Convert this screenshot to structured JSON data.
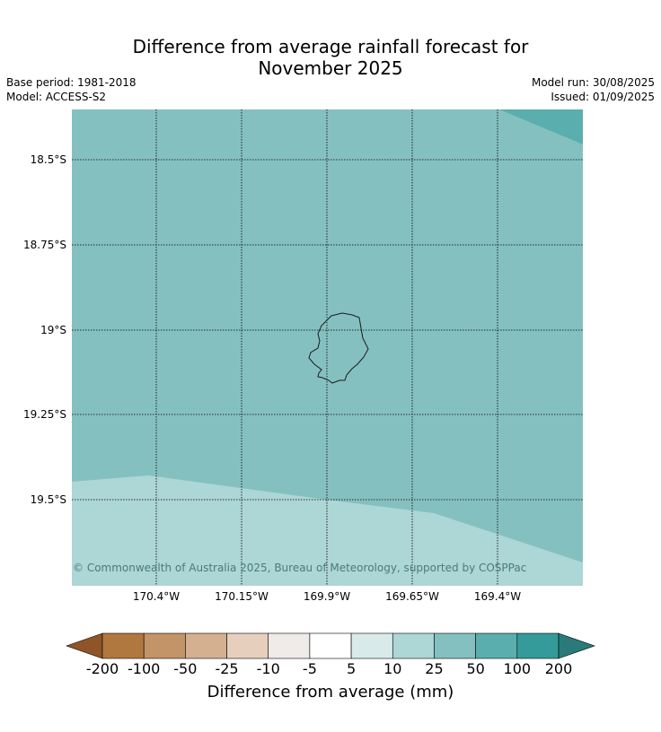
{
  "title": {
    "line1": "Difference from average rainfall forecast for",
    "line2": "November 2025"
  },
  "meta": {
    "base_period": "Base period: 1981-2018",
    "model": "Model: ACCESS-S2",
    "model_run": "Model run: 30/08/2025",
    "issued": "Issued: 01/09/2025"
  },
  "map": {
    "lat_labels": [
      "18.5°S",
      "18.75°S",
      "19°S",
      "19.25°S",
      "19.5°S"
    ],
    "lon_labels": [
      "170.4°W",
      "170.15°W",
      "169.9°W",
      "169.65°W",
      "169.4°W"
    ],
    "colors": {
      "region_25_50": "#85c0c0",
      "region_10_25": "#add6d6",
      "region_50_100": "#5aaeae"
    },
    "copyright": "© Commonwealth of Australia 2025, Bureau of Meteorology, supported by COSPPac"
  },
  "colorbar": {
    "title": "Difference from average (mm)",
    "ticks": [
      "-200",
      "-100",
      "-50",
      "-25",
      "-10",
      "-5",
      "5",
      "10",
      "25",
      "50",
      "100",
      "200"
    ],
    "colors": [
      "#8f5427",
      "#b0773f",
      "#c29467",
      "#d4b091",
      "#e6cfbc",
      "#f0ebe8",
      "#ffffff",
      "#d8ebea",
      "#add6d6",
      "#85c0c0",
      "#5aaeae",
      "#359a9a",
      "#2a7a7a"
    ]
  }
}
